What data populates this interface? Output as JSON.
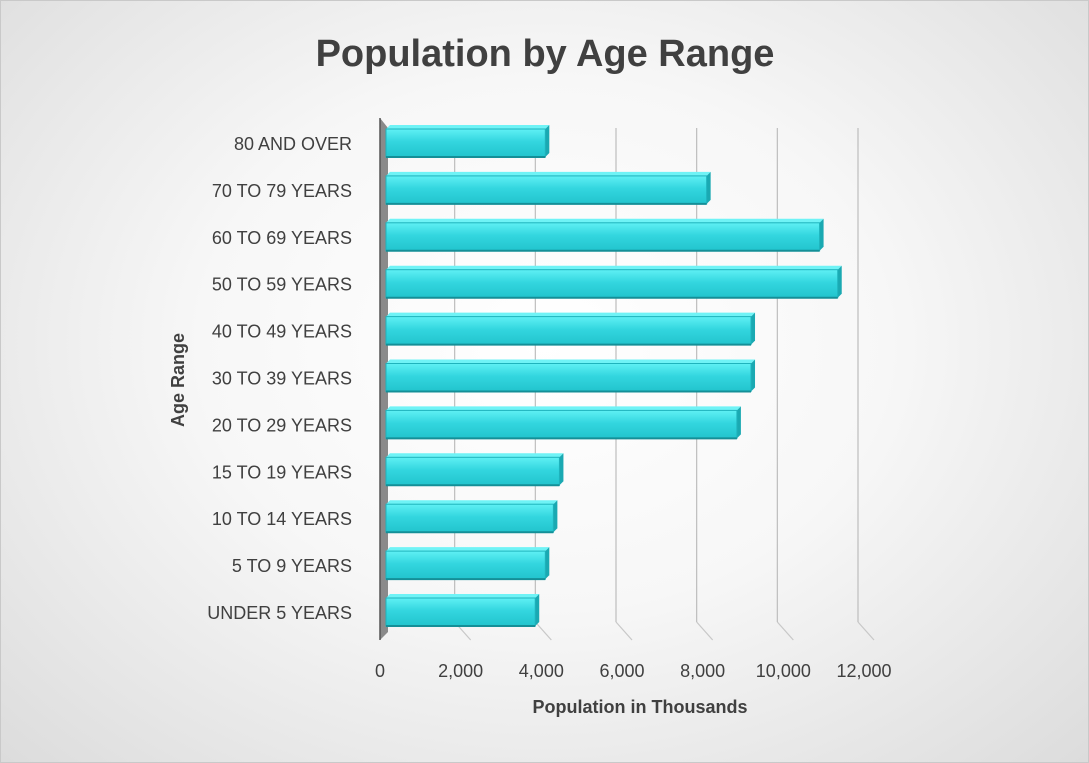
{
  "chart_data": {
    "type": "bar",
    "orientation": "horizontal",
    "title": "Population by Age Range",
    "xlabel": "Population in Thousands",
    "ylabel": "Age Range",
    "categories": [
      "UNDER 5 YEARS",
      "5 TO 9 YEARS",
      "10 TO 14 YEARS",
      "15 TO 19 YEARS",
      "20 TO 29 YEARS",
      "30 TO 39 YEARS",
      "40 TO 49 YEARS",
      "50 TO 59 YEARS",
      "60 TO 69 YEARS",
      "70 TO 79 YEARS",
      "80 AND OVER"
    ],
    "values": [
      3700,
      3950,
      4150,
      4300,
      8700,
      9050,
      9050,
      11200,
      10750,
      7950,
      3950
    ],
    "xlim": [
      0,
      12000
    ],
    "xticks": [
      0,
      2000,
      4000,
      6000,
      8000,
      10000,
      12000
    ],
    "xtick_labels": [
      "0",
      "2,000",
      "4,000",
      "6,000",
      "8,000",
      "10,000",
      "12,000"
    ],
    "grid": true,
    "legend": "none",
    "style": "3d",
    "colors": {
      "bar": "#33d6df",
      "bar_top": "#5ff0f4",
      "bar_edge": "#1aa9b2",
      "wall": "#7a7a7a",
      "text": "#404040"
    }
  }
}
